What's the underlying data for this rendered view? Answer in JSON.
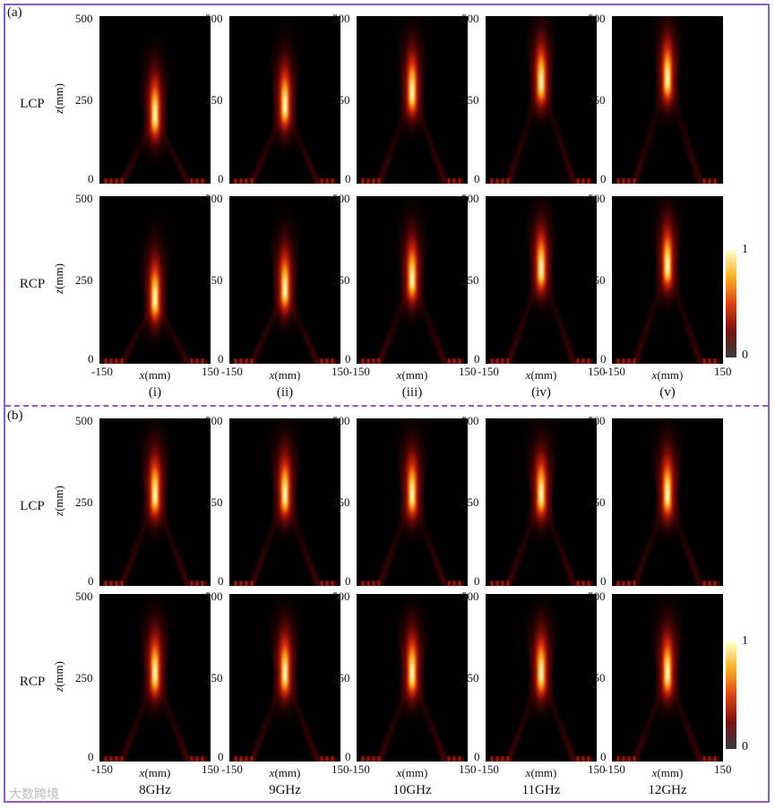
{
  "panels": [
    {
      "label": "(a)",
      "subplot_labels": [
        "(i)",
        "(ii)",
        "(iii)",
        "(iv)",
        "(v)"
      ]
    },
    {
      "label": "(b)",
      "subplot_labels": [
        "8GHz",
        "9GHz",
        "10GHz",
        "11GHz",
        "12GHz"
      ]
    }
  ],
  "row_labels": [
    "LCP",
    "RCP"
  ],
  "axes": {
    "ylabel_var": "z",
    "ylabel_unit": "(mm)",
    "xlabel_var": "x",
    "xlabel_unit": "(mm)",
    "yticks": [
      "500",
      "250",
      "0"
    ],
    "xticks": [
      "-150",
      "150"
    ]
  },
  "colorbar": {
    "max_label": "1",
    "min_label": "0",
    "colors": [
      "#3a3a3a",
      "#7a1010",
      "#e04010",
      "#ffb020",
      "#ffffcc"
    ]
  },
  "watermark": "大数跨境",
  "chart_data": {
    "type": "heatmap",
    "description_units": "normalized intensity 0-1 over x in [-150,150] mm, z in [0,500] mm",
    "xlim": [
      -150,
      150
    ],
    "ylim": [
      0,
      500
    ],
    "colorbar_range": [
      0,
      1
    ],
    "focus_peak_z_mm": {
      "a_LCP": [
        200,
        230,
        270,
        300,
        310
      ],
      "a_RCP": [
        190,
        220,
        250,
        280,
        290
      ],
      "b_LCP": [
        270,
        270,
        270,
        270,
        270
      ],
      "b_RCP": [
        260,
        260,
        260,
        260,
        260
      ]
    }
  }
}
